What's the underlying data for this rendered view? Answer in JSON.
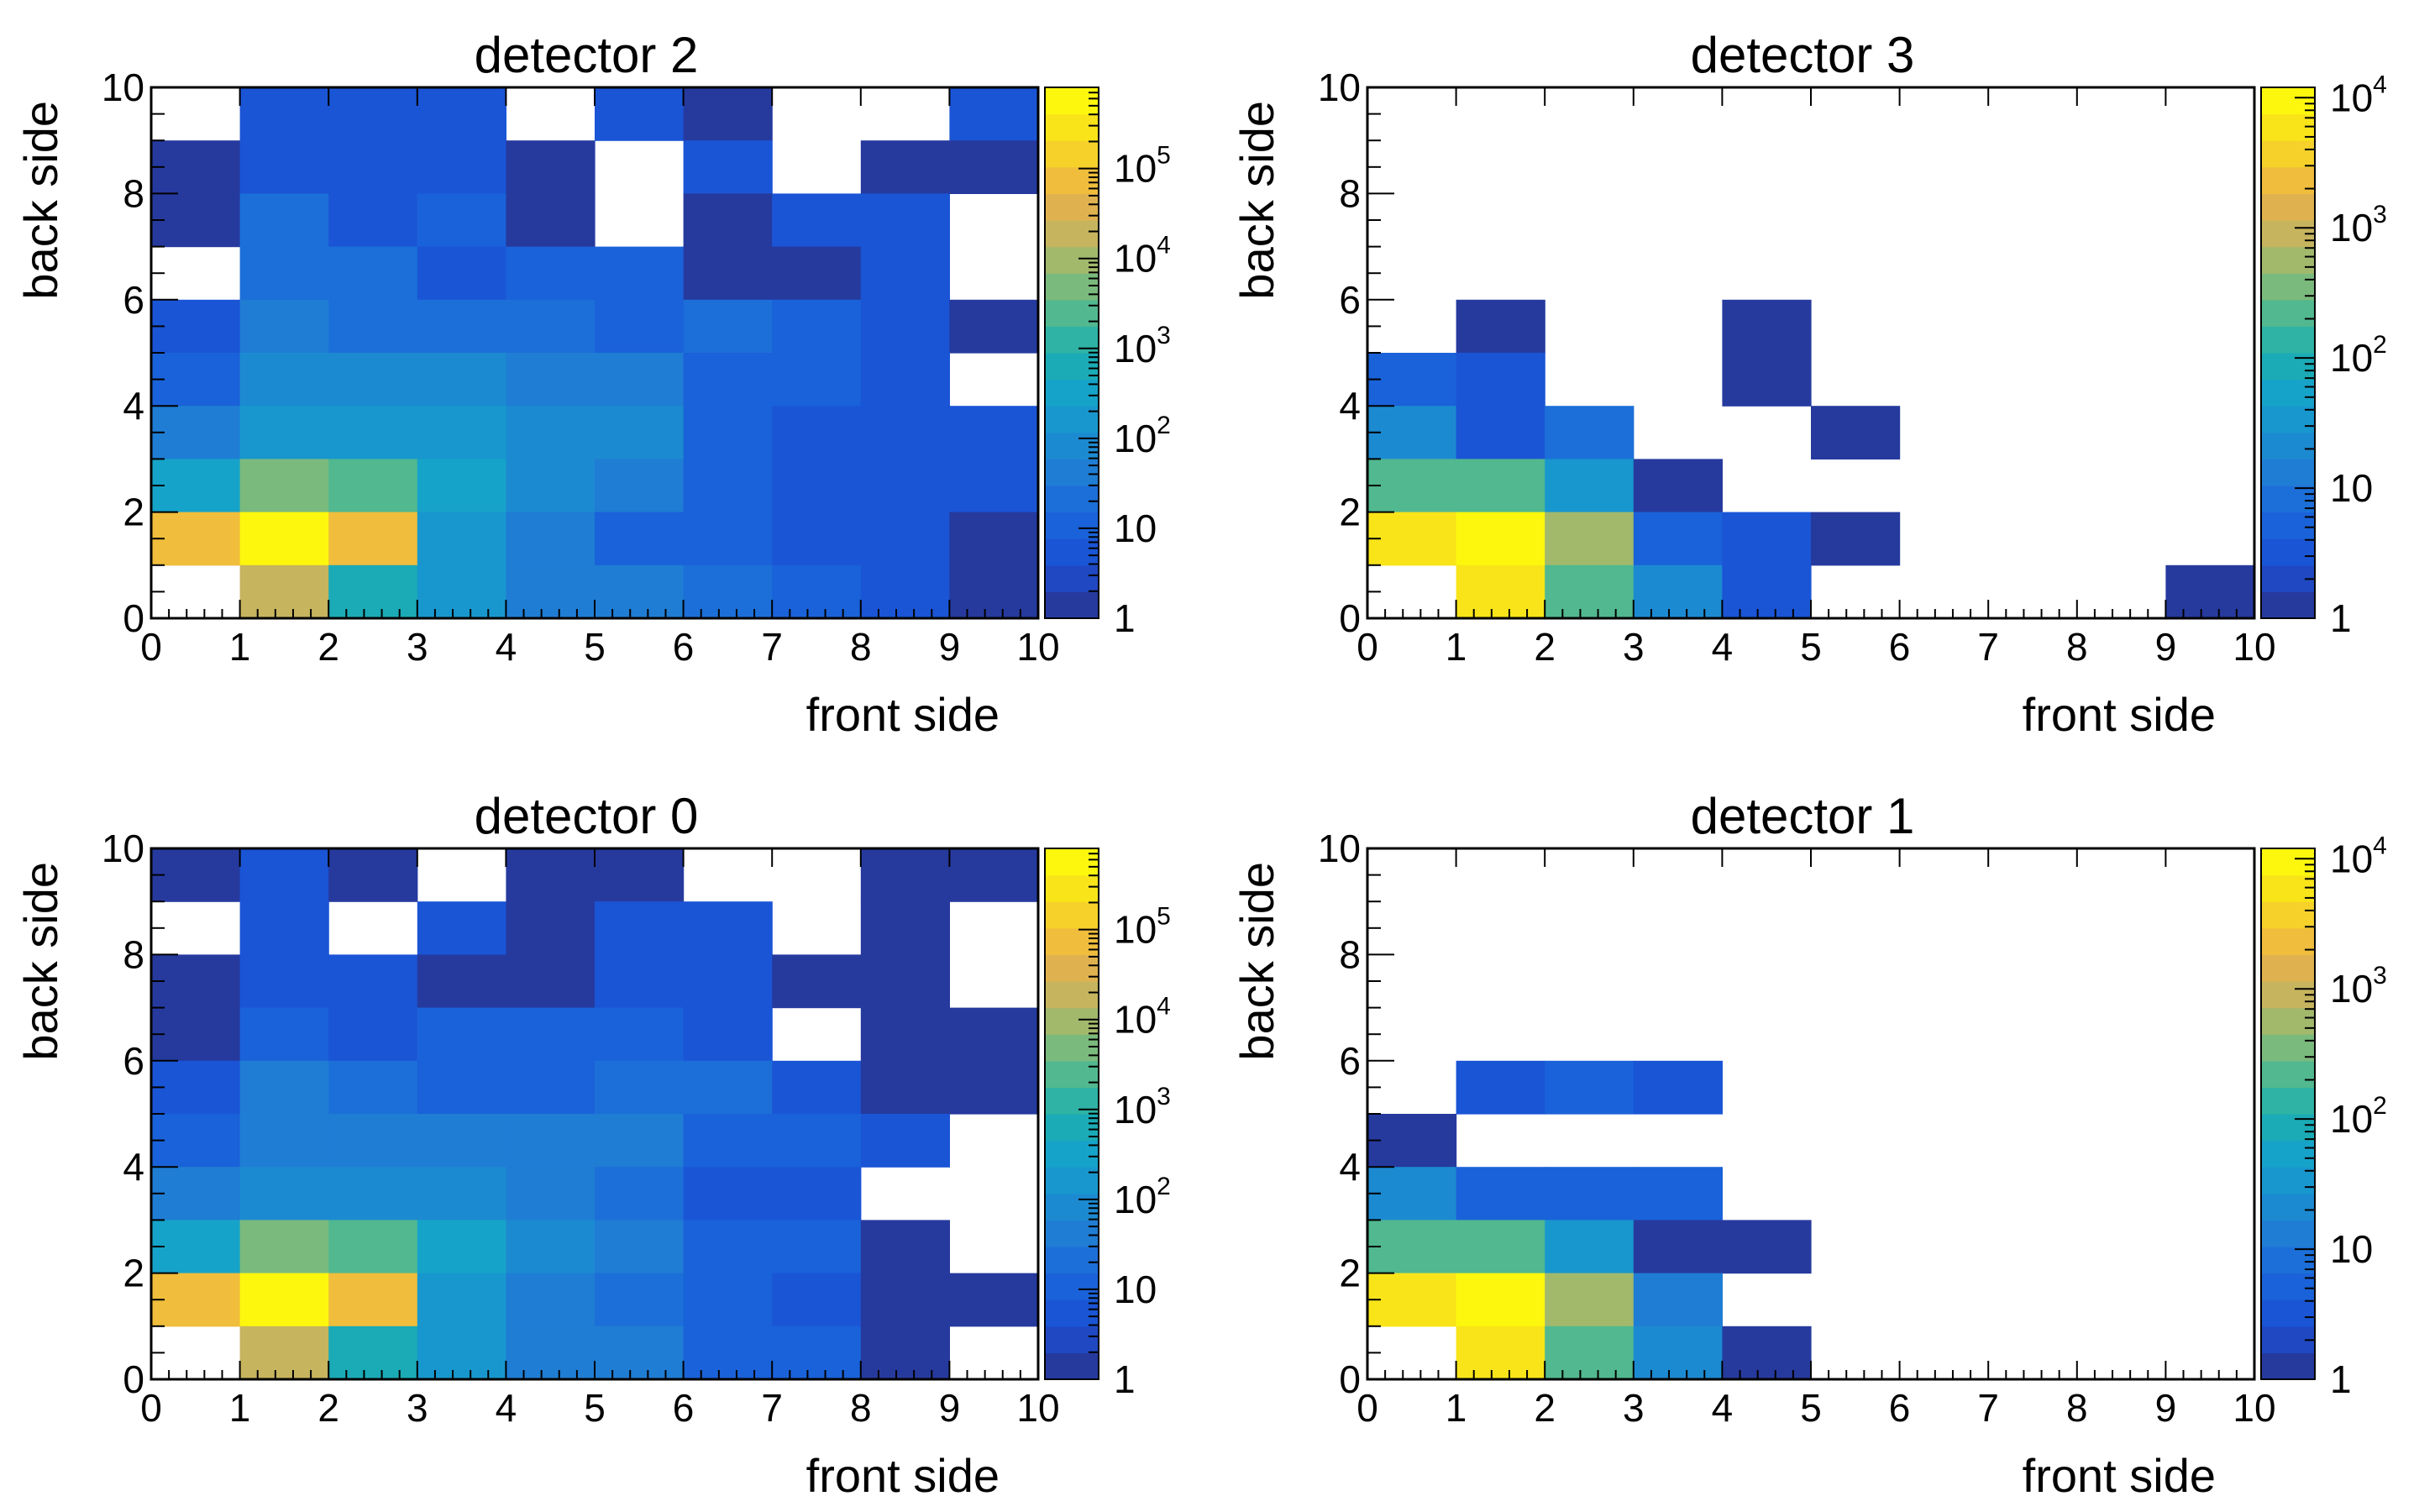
{
  "palette": [
    "#263a9e",
    "#1f48c2",
    "#1a55d6",
    "#1a62d9",
    "#1c6fd8",
    "#1f7dd4",
    "#1c8ad1",
    "#1897ce",
    "#16a3c9",
    "#1aabb6",
    "#2eb3a5",
    "#51b88f",
    "#7aba7d",
    "#a2b96c",
    "#c6b45e",
    "#e0b24f",
    "#f0bd3c",
    "#f5d12a",
    "#f9e419",
    "#fdf70d"
  ],
  "panels": [
    {
      "title": "detector 2",
      "xlabel": "front side",
      "ylabel": "back side",
      "xticks": [
        "0",
        "1",
        "2",
        "3",
        "4",
        "5",
        "6",
        "7",
        "8",
        "9",
        "10"
      ],
      "yticks": [
        "0",
        "2",
        "4",
        "6",
        "8",
        "10"
      ],
      "cb_labels": [
        {
          "base": "1"
        },
        {
          "base": "10"
        },
        {
          "base": "10",
          "exp": "2"
        },
        {
          "base": "10",
          "exp": "3"
        },
        {
          "base": "10",
          "exp": "4"
        },
        {
          "base": "10",
          "exp": "5"
        }
      ],
      "chart_data": {
        "type": "heatmap",
        "xlim": [
          0,
          10
        ],
        "ylim": [
          0,
          10
        ],
        "zscale": "log",
        "zlim": [
          1,
          800000
        ],
        "x_bins": 10,
        "y_bins": 10,
        "counts_top_to_bottom": [
          [
            0,
            5,
            5,
            5,
            0,
            6,
            1,
            0,
            0,
            7
          ],
          [
            1,
            5,
            5,
            5,
            1,
            0,
            6,
            0,
            1,
            1
          ],
          [
            1,
            20,
            6,
            12,
            1,
            0,
            1,
            5,
            5,
            0
          ],
          [
            0,
            20,
            20,
            6,
            11,
            12,
            1,
            1,
            5,
            0
          ],
          [
            6,
            40,
            25,
            20,
            20,
            12,
            25,
            12,
            6,
            1
          ],
          [
            11,
            80,
            80,
            80,
            50,
            30,
            8,
            10,
            5,
            0
          ],
          [
            50,
            200,
            200,
            200,
            100,
            60,
            10,
            5,
            5,
            5
          ],
          [
            400,
            5000,
            3000,
            400,
            80,
            50,
            10,
            5,
            5,
            5
          ],
          [
            60000,
            800000,
            60000,
            150,
            40,
            8,
            8,
            5,
            5,
            1
          ],
          [
            0,
            20000,
            800,
            120,
            40,
            30,
            20,
            15,
            5,
            1
          ]
        ]
      }
    },
    {
      "title": "detector 3",
      "xlabel": "front side",
      "ylabel": "back side",
      "xticks": [
        "0",
        "1",
        "2",
        "3",
        "4",
        "5",
        "6",
        "7",
        "8",
        "9",
        "10"
      ],
      "yticks": [
        "0",
        "2",
        "4",
        "6",
        "8",
        "10"
      ],
      "cb_labels": [
        {
          "base": "1"
        },
        {
          "base": "10"
        },
        {
          "base": "10",
          "exp": "2"
        },
        {
          "base": "10",
          "exp": "3"
        },
        {
          "base": "10",
          "exp": "4"
        }
      ],
      "chart_data": {
        "type": "heatmap",
        "xlim": [
          0,
          10
        ],
        "ylim": [
          0,
          10
        ],
        "zscale": "log",
        "zlim": [
          1,
          12000
        ],
        "x_bins": 10,
        "y_bins": 10,
        "counts_top_to_bottom": [
          [
            0,
            0,
            0,
            0,
            0,
            0,
            0,
            0,
            0,
            0
          ],
          [
            0,
            0,
            0,
            0,
            0,
            0,
            0,
            0,
            0,
            0
          ],
          [
            0,
            0,
            0,
            0,
            0,
            0,
            0,
            0,
            0,
            0
          ],
          [
            0,
            0,
            0,
            0,
            0,
            0,
            0,
            0,
            0,
            0
          ],
          [
            0,
            1,
            0,
            0,
            1,
            0,
            0,
            0,
            0,
            0
          ],
          [
            5,
            3,
            0,
            0,
            1,
            0,
            0,
            0,
            0,
            0
          ],
          [
            25,
            3,
            8,
            0,
            0,
            1,
            0,
            0,
            0,
            0
          ],
          [
            200,
            200,
            40,
            1,
            0,
            0,
            0,
            0,
            0,
            0
          ],
          [
            5000,
            12000,
            500,
            5,
            3,
            1,
            0,
            0,
            0,
            0
          ],
          [
            0,
            5000,
            250,
            20,
            3,
            0,
            0,
            0,
            0,
            1
          ]
        ]
      }
    },
    {
      "title": "detector 0",
      "xlabel": "front side",
      "ylabel": "back side",
      "xticks": [
        "0",
        "1",
        "2",
        "3",
        "4",
        "5",
        "6",
        "7",
        "8",
        "9",
        "10"
      ],
      "yticks": [
        "0",
        "2",
        "4",
        "6",
        "8",
        "10"
      ],
      "cb_labels": [
        {
          "base": "1"
        },
        {
          "base": "10"
        },
        {
          "base": "10",
          "exp": "2"
        },
        {
          "base": "10",
          "exp": "3"
        },
        {
          "base": "10",
          "exp": "4"
        },
        {
          "base": "10",
          "exp": "5"
        }
      ],
      "chart_data": {
        "type": "heatmap",
        "xlim": [
          0,
          10
        ],
        "ylim": [
          0,
          10
        ],
        "zscale": "log",
        "zlim": [
          1,
          800000
        ],
        "x_bins": 10,
        "y_bins": 10,
        "counts_top_to_bottom": [
          [
            1,
            6,
            1,
            0,
            1,
            1,
            0,
            0,
            1,
            1
          ],
          [
            0,
            6,
            0,
            5,
            1,
            5,
            5,
            0,
            1,
            0
          ],
          [
            1,
            5,
            5,
            1,
            1,
            5,
            5,
            1,
            1,
            0
          ],
          [
            1,
            12,
            6,
            11,
            8,
            8,
            5,
            0,
            1,
            1
          ],
          [
            5,
            50,
            20,
            10,
            10,
            20,
            20,
            5,
            1,
            1
          ],
          [
            11,
            40,
            40,
            40,
            30,
            30,
            10,
            10,
            6,
            0
          ],
          [
            40,
            100,
            100,
            60,
            30,
            20,
            5,
            5,
            0,
            0
          ],
          [
            400,
            5000,
            3000,
            400,
            80,
            30,
            8,
            12,
            1,
            0
          ],
          [
            60000,
            800000,
            60000,
            150,
            50,
            20,
            8,
            5,
            1,
            1
          ],
          [
            0,
            20000,
            800,
            120,
            40,
            30,
            10,
            8,
            1,
            0
          ]
        ]
      }
    },
    {
      "title": "detector 1",
      "xlabel": "front side",
      "ylabel": "back side",
      "xticks": [
        "0",
        "1",
        "2",
        "3",
        "4",
        "5",
        "6",
        "7",
        "8",
        "9",
        "10"
      ],
      "yticks": [
        "0",
        "2",
        "4",
        "6",
        "8",
        "10"
      ],
      "cb_labels": [
        {
          "base": "1"
        },
        {
          "base": "10"
        },
        {
          "base": "10",
          "exp": "2"
        },
        {
          "base": "10",
          "exp": "3"
        },
        {
          "base": "10",
          "exp": "4"
        }
      ],
      "chart_data": {
        "type": "heatmap",
        "xlim": [
          0,
          10
        ],
        "ylim": [
          0,
          10
        ],
        "zscale": "log",
        "zlim": [
          1,
          12000
        ],
        "x_bins": 10,
        "y_bins": 10,
        "counts_top_to_bottom": [
          [
            0,
            0,
            0,
            0,
            0,
            0,
            0,
            0,
            0,
            0
          ],
          [
            0,
            0,
            0,
            0,
            0,
            0,
            0,
            0,
            0,
            0
          ],
          [
            0,
            0,
            0,
            0,
            0,
            0,
            0,
            0,
            0,
            0
          ],
          [
            0,
            0,
            0,
            0,
            0,
            0,
            0,
            0,
            0,
            0
          ],
          [
            0,
            3,
            5,
            3,
            0,
            0,
            0,
            0,
            0,
            0
          ],
          [
            1,
            0,
            0,
            0,
            0,
            0,
            0,
            0,
            0,
            0
          ],
          [
            20,
            5,
            5,
            5,
            0,
            0,
            0,
            0,
            0,
            0
          ],
          [
            200,
            200,
            40,
            1,
            1,
            0,
            0,
            0,
            0,
            0
          ],
          [
            5000,
            12000,
            500,
            12,
            0,
            0,
            0,
            0,
            0,
            0
          ],
          [
            0,
            5000,
            250,
            20,
            1,
            0,
            0,
            0,
            0,
            0
          ]
        ]
      }
    }
  ]
}
